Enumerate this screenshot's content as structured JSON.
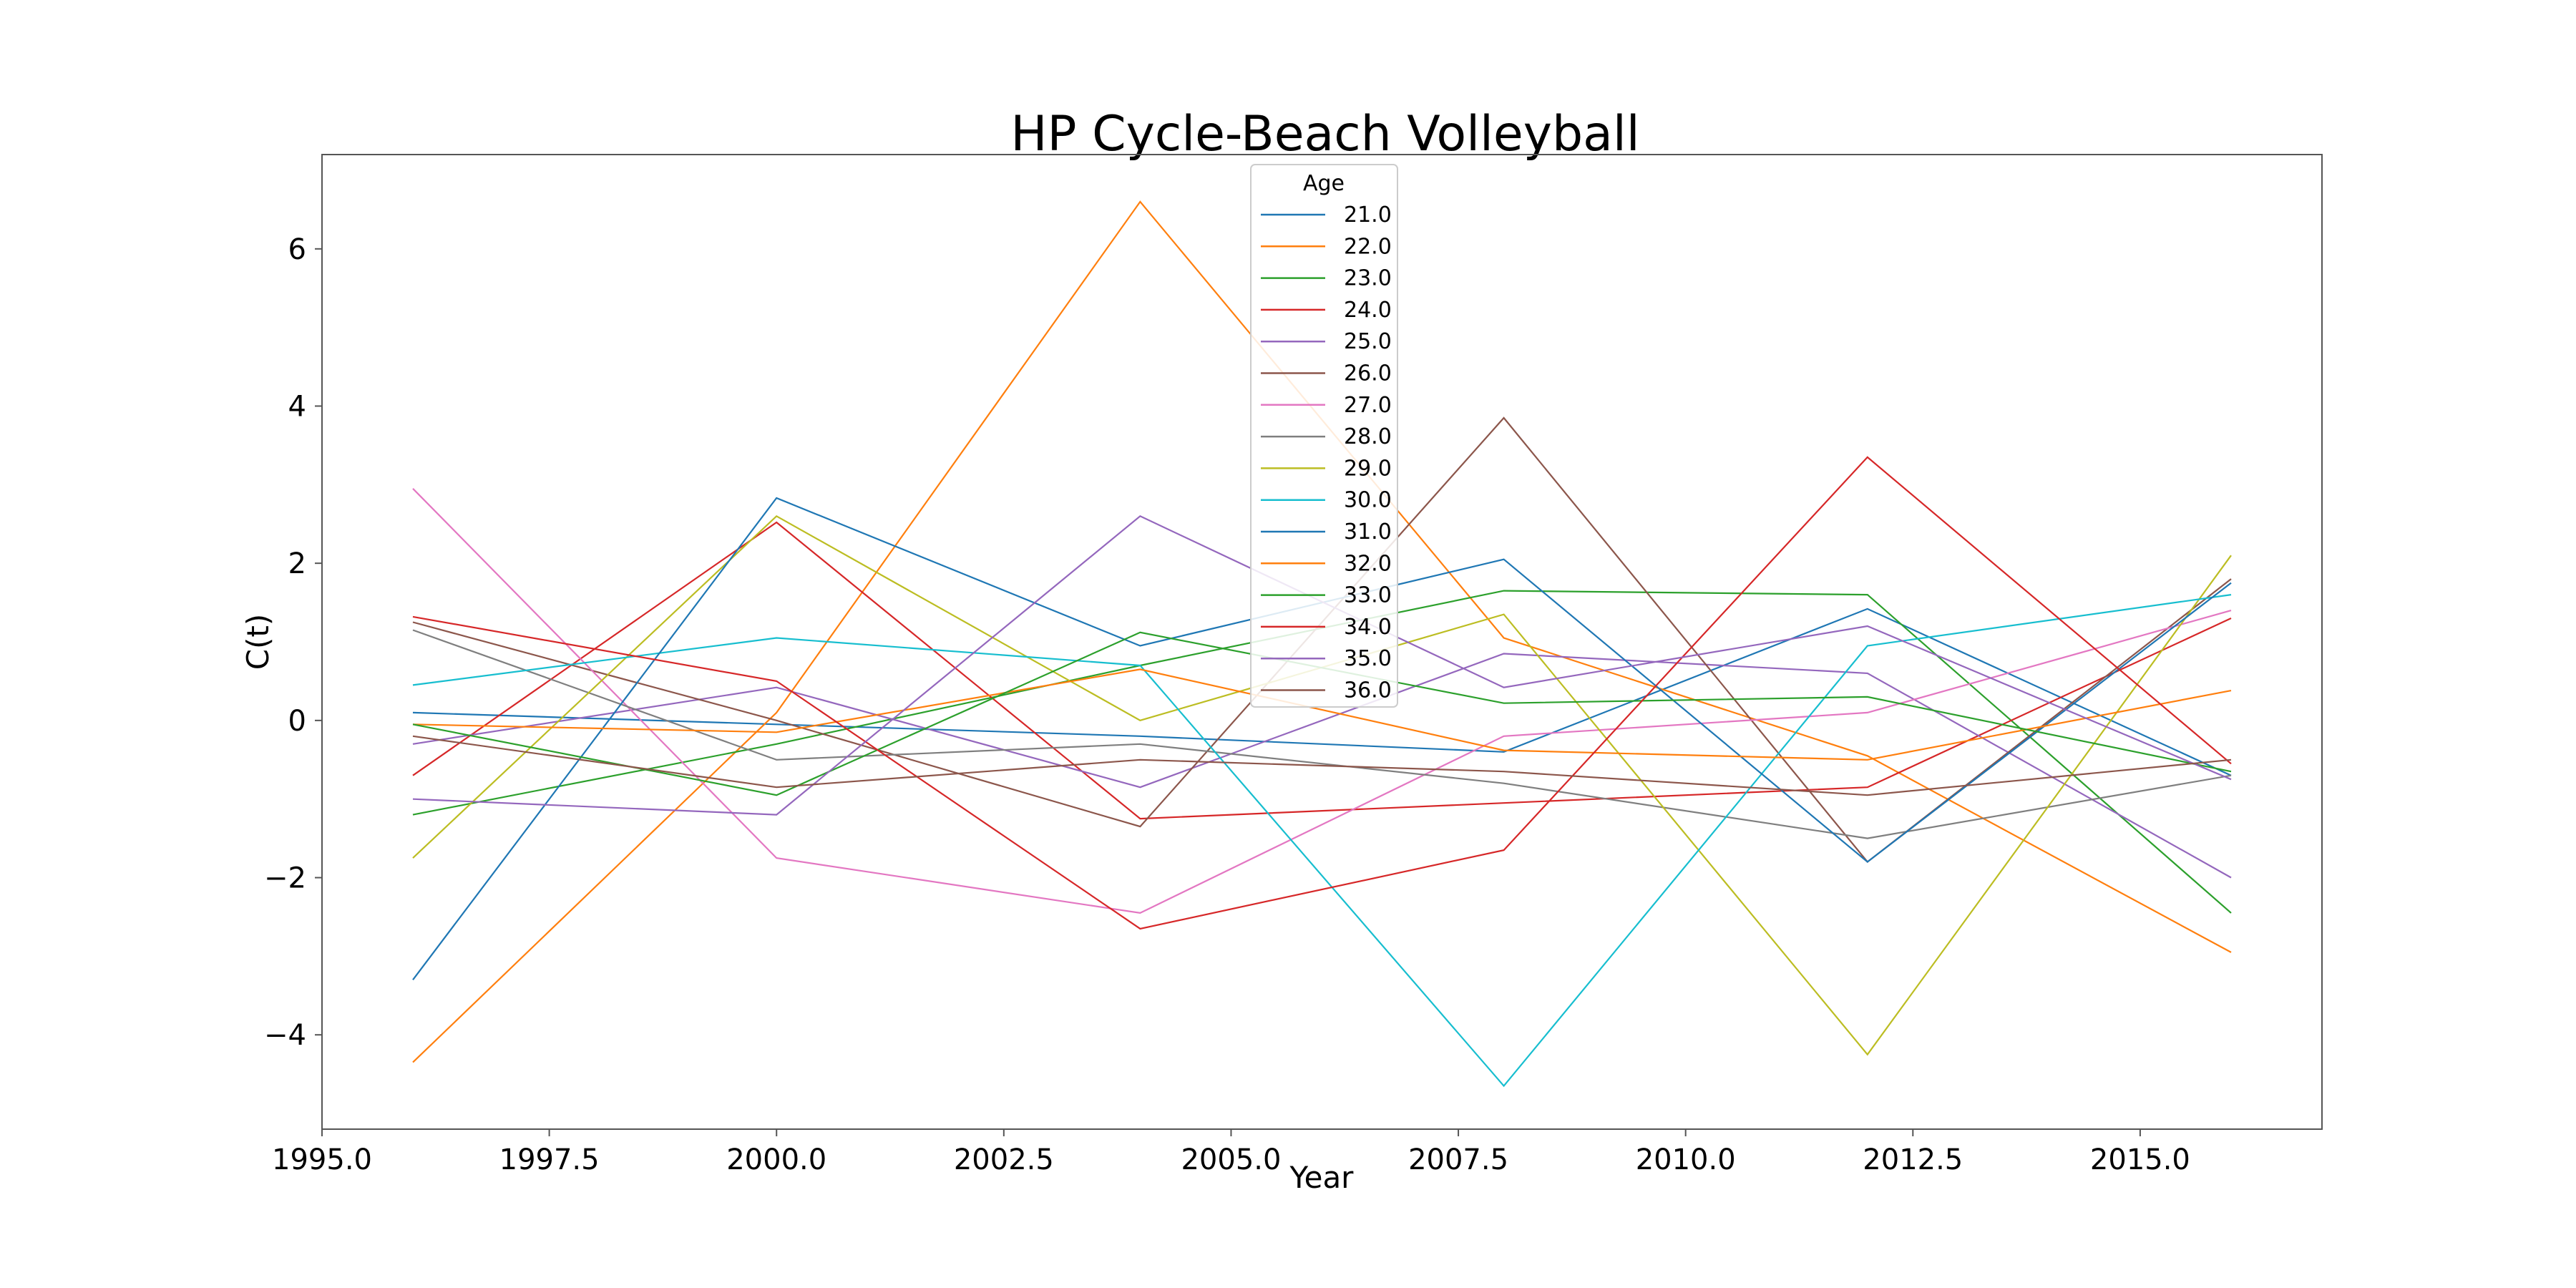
{
  "chart_data": {
    "type": "line",
    "title": "HP Cycle-Beach Volleyball",
    "xlabel": "Year",
    "ylabel": "C(t)",
    "xlim": [
      1995.0,
      2017.0
    ],
    "ylim": [
      -5.2,
      7.2
    ],
    "xticks": [
      1995.0,
      1997.5,
      2000.0,
      2002.5,
      2005.0,
      2007.5,
      2010.0,
      2012.5,
      2015.0
    ],
    "xtick_labels": [
      "1995.0",
      "1997.5",
      "2000.0",
      "2002.5",
      "2005.0",
      "2007.5",
      "2010.0",
      "2012.5",
      "2015.0"
    ],
    "yticks": [
      -4,
      -2,
      0,
      2,
      4,
      6
    ],
    "ytick_labels": [
      "−4",
      "−2",
      "0",
      "2",
      "4",
      "6"
    ],
    "grid": false,
    "legend": {
      "title": "Age",
      "placement": "top-center"
    },
    "x": [
      1996,
      2000,
      2004,
      2008,
      2012,
      2016
    ],
    "series": [
      {
        "name": "21.0",
        "color": "#1f77b4",
        "values": [
          0.1,
          -0.05,
          -0.2,
          -0.4,
          1.42,
          -0.7
        ]
      },
      {
        "name": "22.0",
        "color": "#ff7f0e",
        "values": [
          -4.35,
          0.1,
          6.6,
          1.05,
          -0.45,
          -2.95
        ]
      },
      {
        "name": "23.0",
        "color": "#2ca02c",
        "values": [
          -1.2,
          -0.3,
          0.7,
          1.65,
          1.6,
          -2.45
        ]
      },
      {
        "name": "24.0",
        "color": "#d62728",
        "values": [
          -0.7,
          2.52,
          -1.25,
          -1.05,
          -0.85,
          1.3
        ]
      },
      {
        "name": "25.0",
        "color": "#9467bd",
        "values": [
          -0.3,
          0.42,
          -0.85,
          0.85,
          0.6,
          -2.0
        ]
      },
      {
        "name": "26.0",
        "color": "#8c564b",
        "values": [
          1.25,
          0.0,
          -1.35,
          3.85,
          -1.8,
          1.8
        ]
      },
      {
        "name": "27.0",
        "color": "#e377c2",
        "values": [
          2.95,
          -1.75,
          -2.45,
          -0.2,
          0.1,
          1.4
        ]
      },
      {
        "name": "28.0",
        "color": "#7f7f7f",
        "values": [
          1.15,
          -0.5,
          -0.3,
          -0.8,
          -1.5,
          -0.7
        ]
      },
      {
        "name": "29.0",
        "color": "#bcbd22",
        "values": [
          -1.75,
          2.6,
          0.0,
          1.35,
          -4.25,
          2.1
        ]
      },
      {
        "name": "30.0",
        "color": "#17becf",
        "values": [
          0.45,
          1.05,
          0.7,
          -4.65,
          0.95,
          1.6
        ]
      },
      {
        "name": "31.0",
        "color": "#1f77b4",
        "values": [
          -3.3,
          2.83,
          0.95,
          2.05,
          -1.8,
          1.75
        ]
      },
      {
        "name": "32.0",
        "color": "#ff7f0e",
        "values": [
          -0.05,
          -0.15,
          0.65,
          -0.38,
          -0.5,
          0.38
        ]
      },
      {
        "name": "33.0",
        "color": "#2ca02c",
        "values": [
          -0.05,
          -0.95,
          1.12,
          0.22,
          0.3,
          -0.65
        ]
      },
      {
        "name": "34.0",
        "color": "#d62728",
        "values": [
          1.32,
          0.5,
          -2.65,
          -1.65,
          3.35,
          -0.55
        ]
      },
      {
        "name": "35.0",
        "color": "#9467bd",
        "values": [
          -1.0,
          -1.2,
          2.6,
          0.42,
          1.2,
          -0.75
        ]
      },
      {
        "name": "36.0",
        "color": "#8c564b",
        "values": [
          -0.2,
          -0.85,
          -0.5,
          -0.65,
          -0.95,
          -0.5
        ]
      }
    ]
  }
}
